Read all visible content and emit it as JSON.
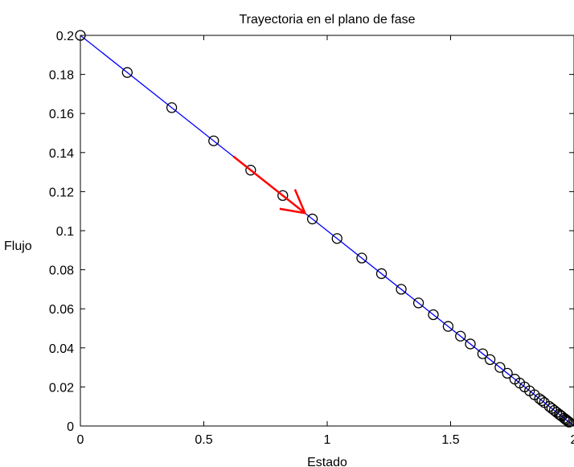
{
  "chart_data": {
    "type": "line",
    "title": "Trayectoria en el plano de fase",
    "xlabel": "Estado",
    "ylabel": "Flujo",
    "xlim": [
      0,
      2
    ],
    "ylim": [
      0,
      0.2
    ],
    "xticks": [
      0,
      0.5,
      1,
      1.5,
      2
    ],
    "xtick_labels": [
      "0",
      "0.5",
      "1",
      "1.5",
      "2"
    ],
    "yticks": [
      0,
      0.02,
      0.04,
      0.06,
      0.08,
      0.1,
      0.12,
      0.14,
      0.16,
      0.18,
      0.2
    ],
    "ytick_labels": [
      "0",
      "0.02",
      "0.04",
      "0.06",
      "0.08",
      "0.1",
      "0.12",
      "0.14",
      "0.16",
      "0.18",
      "0.2"
    ],
    "grid": false,
    "series": [
      {
        "style": "line",
        "color": "#0000ff",
        "x": [
          0,
          2
        ],
        "y": [
          0.2,
          0
        ]
      },
      {
        "style": "markers",
        "marker": "circle-open",
        "color": "#000000",
        "x": [
          0,
          0.19,
          0.37,
          0.54,
          0.69,
          0.82,
          0.94,
          1.04,
          1.14,
          1.22,
          1.3,
          1.37,
          1.43,
          1.49,
          1.54,
          1.58,
          1.63,
          1.66,
          1.7,
          1.73,
          1.76,
          1.78,
          1.8,
          1.82,
          1.84,
          1.86,
          1.87,
          1.88,
          1.9,
          1.91,
          1.92,
          1.93,
          1.94,
          1.945,
          1.95,
          1.96,
          1.965,
          1.97,
          1.975,
          1.98
        ],
        "y": [
          0.2,
          0.181,
          0.163,
          0.146,
          0.131,
          0.118,
          0.106,
          0.096,
          0.086,
          0.078,
          0.07,
          0.063,
          0.057,
          0.051,
          0.046,
          0.042,
          0.037,
          0.034,
          0.03,
          0.027,
          0.024,
          0.022,
          0.02,
          0.018,
          0.016,
          0.014,
          0.013,
          0.012,
          0.01,
          0.009,
          0.008,
          0.007,
          0.006,
          0.0055,
          0.005,
          0.004,
          0.0035,
          0.003,
          0.0025,
          0.002
        ]
      }
    ],
    "annotations": [
      {
        "type": "arrow",
        "color": "#ff0000",
        "from": [
          0.62,
          0.138
        ],
        "to": [
          0.91,
          0.109
        ]
      }
    ]
  }
}
